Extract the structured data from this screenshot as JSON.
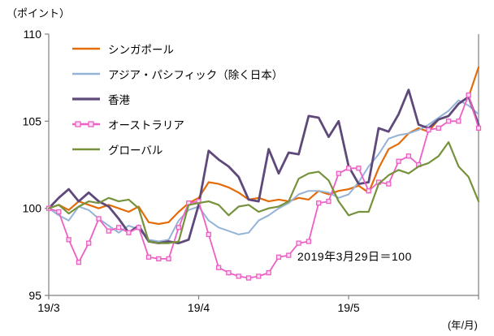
{
  "chart_data": {
    "type": "line",
    "title": "",
    "ylabel": "（ポイント）",
    "xlabel": "(年/月)",
    "annotation": "2019年3月29日＝100",
    "ylim": [
      95,
      110
    ],
    "yticks": [
      95,
      100,
      105,
      110
    ],
    "xticks": [
      {
        "index": 0,
        "label": "19/3"
      },
      {
        "index": 15,
        "label": "19/4"
      },
      {
        "index": 30,
        "label": "19/5"
      }
    ],
    "grid": false,
    "legend_position": "top-left-inside",
    "axis_color": "#7f7f7f",
    "series": [
      {
        "name": "シンガポール",
        "color": "#E36C09",
        "marker": "none",
        "values": [
          100.0,
          100.2,
          99.9,
          100.4,
          100.2,
          100.0,
          100.2,
          100.0,
          99.8,
          100.1,
          99.2,
          99.1,
          99.2,
          99.8,
          100.3,
          100.6,
          101.5,
          101.4,
          101.2,
          100.9,
          100.5,
          100.6,
          100.4,
          100.5,
          100.4,
          100.6,
          100.5,
          101.0,
          100.8,
          101.0,
          101.1,
          101.3,
          100.9,
          102.3,
          103.4,
          103.7,
          104.3,
          104.6,
          104.4,
          105.1,
          105.3,
          106.0,
          106.4,
          108.1
        ]
      },
      {
        "name": "アジア・パシフィック（除く日本）",
        "color": "#95B3D7",
        "marker": "none",
        "values": [
          100.0,
          99.6,
          99.3,
          100.1,
          99.9,
          99.4,
          99.0,
          98.6,
          99.0,
          98.8,
          98.2,
          98.1,
          98.2,
          99.3,
          99.9,
          100.1,
          99.3,
          98.9,
          98.7,
          98.5,
          98.6,
          99.3,
          99.6,
          100.0,
          100.3,
          100.8,
          101.0,
          101.0,
          100.9,
          100.6,
          100.8,
          101.5,
          102.4,
          103.1,
          104.0,
          104.2,
          104.3,
          104.5,
          104.8,
          105.2,
          105.6,
          106.2,
          105.9,
          105.4
        ]
      },
      {
        "name": "香港",
        "color": "#5F497A",
        "marker": "none",
        "values": [
          100.0,
          100.6,
          101.1,
          100.4,
          100.9,
          100.4,
          100.1,
          99.4,
          98.6,
          99.0,
          98.1,
          98.0,
          98.1,
          98.0,
          98.2,
          100.2,
          103.3,
          102.8,
          102.4,
          101.8,
          100.5,
          100.4,
          103.4,
          102.0,
          103.2,
          103.1,
          105.3,
          105.2,
          104.1,
          105.0,
          102.4,
          101.4,
          101.5,
          104.6,
          104.4,
          105.4,
          106.8,
          104.8,
          104.6,
          105.1,
          105.3,
          106.0,
          106.4,
          104.8
        ]
      },
      {
        "name": "オーストラリア",
        "color": "#EE5FC5",
        "marker": "square",
        "marker_fill": "#fbdcf0",
        "values": [
          100.0,
          99.8,
          98.2,
          96.9,
          98.0,
          99.4,
          98.7,
          98.9,
          98.6,
          98.9,
          97.2,
          97.1,
          97.1,
          98.9,
          100.3,
          100.4,
          98.5,
          96.6,
          96.3,
          96.1,
          96.0,
          96.1,
          96.3,
          97.2,
          97.3,
          98.0,
          98.1,
          100.3,
          100.4,
          102.0,
          102.3,
          102.3,
          101.0,
          101.5,
          101.4,
          102.7,
          103.0,
          102.5,
          104.5,
          104.6,
          105.0,
          105.0,
          106.5,
          104.6
        ]
      },
      {
        "name": "グローバル",
        "color": "#76923C",
        "marker": "none",
        "values": [
          100.0,
          100.2,
          99.7,
          100.1,
          100.4,
          100.3,
          100.6,
          100.4,
          100.5,
          100.0,
          98.1,
          98.0,
          98.0,
          98.1,
          100.2,
          100.3,
          100.4,
          100.2,
          99.6,
          100.1,
          100.2,
          99.8,
          100.0,
          100.1,
          100.4,
          101.7,
          102.0,
          102.1,
          101.6,
          100.4,
          99.6,
          99.8,
          99.8,
          101.4,
          101.9,
          102.2,
          102.0,
          102.4,
          102.6,
          103.0,
          103.8,
          102.4,
          101.8,
          100.4
        ]
      }
    ]
  }
}
